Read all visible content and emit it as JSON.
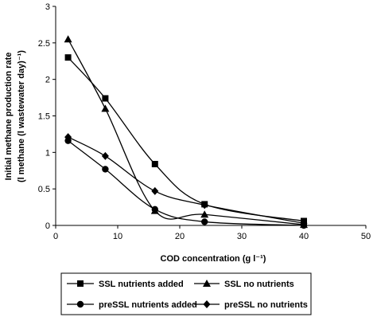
{
  "chart_data": {
    "type": "line",
    "title": "",
    "xlabel": "COD concentration (g l⁻¹)",
    "ylabel_line1": "Initial methane production rate",
    "ylabel_line2": "(l methane (l wastewater day)⁻¹)",
    "xlim": [
      0,
      50
    ],
    "ylim": [
      0,
      3
    ],
    "xticks": [
      "0",
      "10",
      "20",
      "30",
      "40",
      "50"
    ],
    "yticks": [
      "0",
      "0.5",
      "1",
      "1.5",
      "2",
      "2.5",
      "3"
    ],
    "grid": false,
    "legend_placement": "bottom",
    "series": [
      {
        "name": "SSL nutrients added",
        "marker": "square",
        "x": [
          2,
          8,
          16,
          24,
          40
        ],
        "y": [
          2.3,
          1.74,
          0.84,
          0.29,
          0.06
        ]
      },
      {
        "name": "SSL no nutrients",
        "marker": "triangle",
        "x": [
          2,
          8,
          16,
          24,
          40
        ],
        "y": [
          2.55,
          1.6,
          0.2,
          0.15,
          0.01
        ]
      },
      {
        "name": "preSSL nutrients added",
        "marker": "circle",
        "x": [
          2,
          8,
          16,
          24,
          40
        ],
        "y": [
          1.16,
          0.77,
          0.22,
          0.05,
          0.0
        ]
      },
      {
        "name": "preSSL no nutrients",
        "marker": "diamond",
        "x": [
          2,
          8,
          16,
          24,
          40
        ],
        "y": [
          1.21,
          0.95,
          0.47,
          0.28,
          0.03
        ]
      }
    ]
  }
}
